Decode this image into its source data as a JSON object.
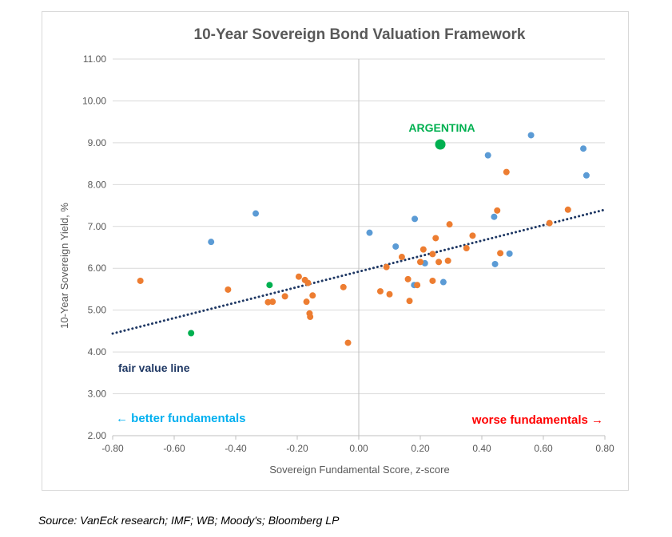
{
  "chart_data": {
    "type": "scatter",
    "title": "10-Year Sovereign Bond Valuation Framework",
    "xlabel": "Sovereign Fundamental Score, z-score",
    "ylabel": "10-Year Sovereign Yield, %",
    "xlim": [
      -0.8,
      0.8
    ],
    "ylim": [
      2.0,
      11.0
    ],
    "x_ticks": [
      "-0.80",
      "-0.60",
      "-0.40",
      "-0.20",
      "0.00",
      "0.20",
      "0.40",
      "0.60",
      "0.80"
    ],
    "y_ticks": [
      "2.00",
      "3.00",
      "4.00",
      "5.00",
      "6.00",
      "7.00",
      "8.00",
      "9.00",
      "10.00",
      "11.00"
    ],
    "grid": "horizontal",
    "colors": {
      "blue": "#5b9bd5",
      "orange": "#ed7d31",
      "green": "#00b050",
      "trend": "#1f3864"
    },
    "series": [
      {
        "color": "blue",
        "points": [
          [
            -0.48,
            6.63
          ],
          [
            -0.335,
            7.31
          ],
          [
            0.035,
            6.85
          ],
          [
            0.12,
            6.52
          ],
          [
            0.182,
            7.18
          ],
          [
            0.18,
            5.6
          ],
          [
            0.215,
            6.12
          ],
          [
            0.275,
            5.67
          ],
          [
            0.42,
            8.7
          ],
          [
            0.44,
            7.23
          ],
          [
            0.443,
            6.1
          ],
          [
            0.49,
            6.35
          ],
          [
            0.56,
            9.18
          ],
          [
            0.73,
            8.86
          ],
          [
            0.74,
            8.22
          ]
        ]
      },
      {
        "color": "orange",
        "points": [
          [
            -0.71,
            5.7
          ],
          [
            -0.425,
            5.49
          ],
          [
            -0.24,
            5.33
          ],
          [
            -0.28,
            5.2
          ],
          [
            -0.295,
            5.19
          ],
          [
            -0.195,
            5.8
          ],
          [
            -0.175,
            5.72
          ],
          [
            -0.165,
            5.65
          ],
          [
            -0.17,
            5.2
          ],
          [
            -0.15,
            5.35
          ],
          [
            -0.16,
            4.92
          ],
          [
            -0.158,
            4.84
          ],
          [
            -0.05,
            5.55
          ],
          [
            -0.035,
            4.22
          ],
          [
            0.07,
            5.45
          ],
          [
            0.09,
            6.03
          ],
          [
            0.1,
            5.38
          ],
          [
            0.14,
            6.27
          ],
          [
            0.16,
            5.74
          ],
          [
            0.165,
            5.22
          ],
          [
            0.19,
            5.6
          ],
          [
            0.2,
            6.15
          ],
          [
            0.21,
            6.45
          ],
          [
            0.24,
            5.7
          ],
          [
            0.24,
            6.34
          ],
          [
            0.25,
            6.72
          ],
          [
            0.26,
            6.15
          ],
          [
            0.29,
            6.18
          ],
          [
            0.295,
            7.05
          ],
          [
            0.35,
            6.48
          ],
          [
            0.37,
            6.78
          ],
          [
            0.45,
            7.38
          ],
          [
            0.46,
            6.36
          ],
          [
            0.48,
            8.3
          ],
          [
            0.62,
            7.08
          ],
          [
            0.68,
            7.4
          ]
        ]
      },
      {
        "color": "green",
        "points": [
          [
            -0.545,
            4.45
          ],
          [
            -0.29,
            5.6
          ]
        ]
      }
    ],
    "highlight": {
      "label": "ARGENTINA",
      "x": 0.265,
      "y": 8.96,
      "color": "green"
    },
    "trendline": {
      "label": "fair value line",
      "x": [
        -0.8,
        0.8
      ],
      "y": [
        4.44,
        7.4
      ],
      "style": "dotted"
    },
    "annotations": {
      "left": "← better fundamentals",
      "right": "worse fundamentals →"
    }
  },
  "source": "Source: VanEck research; IMF; WB; Moody's; Bloomberg LP"
}
